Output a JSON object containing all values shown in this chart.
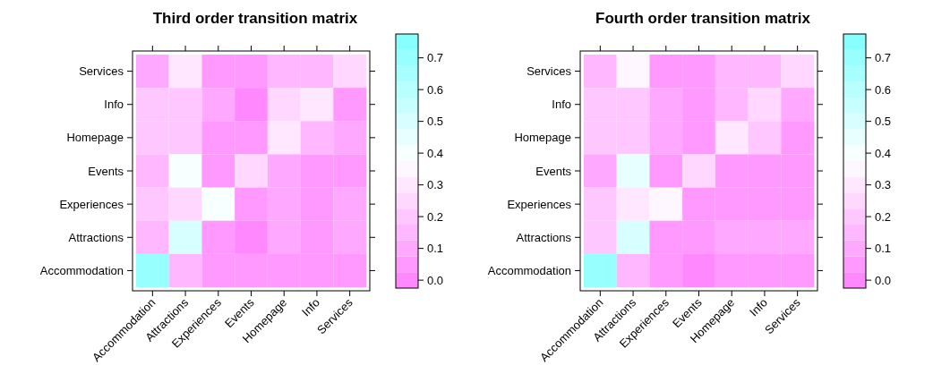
{
  "chart_data": [
    {
      "type": "heatmap",
      "title": "Third order transition matrix",
      "categories": [
        "Accommodation",
        "Attractions",
        "Experiences",
        "Events",
        "Homepage",
        "Info",
        "Services"
      ],
      "y_categories": [
        "Services",
        "Info",
        "Homepage",
        "Events",
        "Experiences",
        "Attractions",
        "Accommodation"
      ],
      "cells": [
        [
          0.1,
          0.3,
          0.05,
          0.05,
          0.15,
          0.15,
          0.25
        ],
        [
          0.2,
          0.2,
          0.1,
          0.0,
          0.25,
          0.3,
          0.05
        ],
        [
          0.2,
          0.2,
          0.05,
          0.05,
          0.3,
          0.15,
          0.1
        ],
        [
          0.15,
          0.4,
          0.05,
          0.25,
          0.1,
          0.05,
          0.05
        ],
        [
          0.2,
          0.25,
          0.4,
          0.05,
          0.1,
          0.05,
          0.1
        ],
        [
          0.15,
          0.5,
          0.05,
          0.0,
          0.1,
          0.05,
          0.1
        ],
        [
          0.7,
          0.15,
          0.05,
          0.05,
          0.05,
          0.05,
          0.05
        ]
      ],
      "clim": [
        -0.025,
        0.775
      ],
      "cticks": [
        {
          "value": 0,
          "label": "0.0"
        },
        0.1,
        0.2,
        0.3,
        0.4,
        0.5,
        0.6,
        0.7
      ]
    },
    {
      "type": "heatmap",
      "title": "Fourth order transition matrix",
      "categories": [
        "Accommodation",
        "Attractions",
        "Experiences",
        "Events",
        "Homepage",
        "Info",
        "Services"
      ],
      "y_categories": [
        "Services",
        "Info",
        "Homepage",
        "Events",
        "Experiences",
        "Attractions",
        "Accommodation"
      ],
      "cells": [
        [
          0.15,
          0.35,
          0.05,
          0.05,
          0.15,
          0.15,
          0.25
        ],
        [
          0.2,
          0.2,
          0.1,
          0.05,
          0.15,
          0.25,
          0.1
        ],
        [
          0.2,
          0.2,
          0.1,
          0.05,
          0.3,
          0.2,
          0.05
        ],
        [
          0.1,
          0.45,
          0.05,
          0.25,
          0.05,
          0.05,
          0.05
        ],
        [
          0.2,
          0.3,
          0.35,
          0.05,
          0.05,
          0.05,
          0.05
        ],
        [
          0.2,
          0.5,
          0.05,
          0.05,
          0.1,
          0.1,
          0.1
        ],
        [
          0.7,
          0.15,
          0.05,
          0.0,
          0.05,
          0.05,
          0.05
        ]
      ],
      "clim": [
        -0.025,
        0.775
      ],
      "cticks": [
        {
          "value": 0,
          "label": "0.0"
        },
        0.1,
        0.2,
        0.3,
        0.4,
        0.5,
        0.6,
        0.7
      ]
    }
  ]
}
